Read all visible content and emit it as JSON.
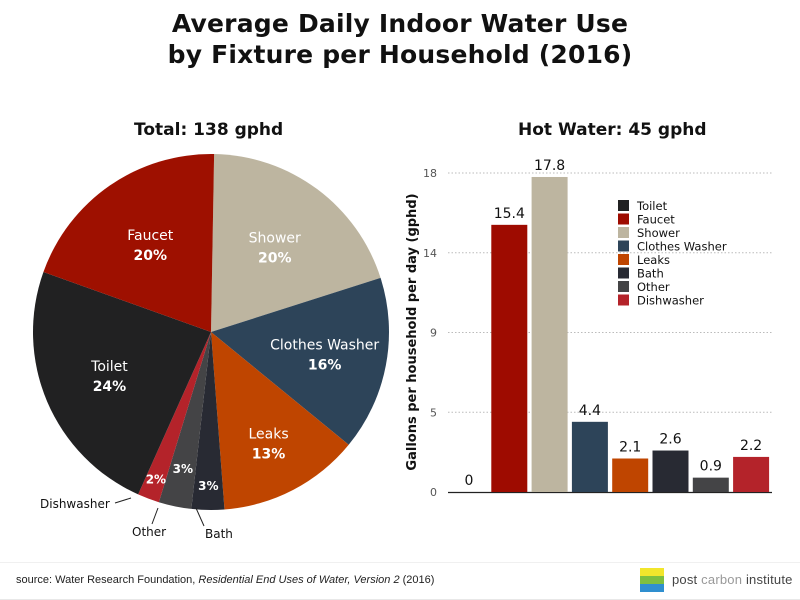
{
  "title_line1": "Average Daily Indoor Water Use",
  "title_line2": "by Fixture per Household (2016)",
  "chart_data": [
    {
      "type": "pie",
      "title": "Total: 138 gphd",
      "unit": "percent",
      "slices": [
        {
          "label": "Shower",
          "value": 20,
          "display": "20%",
          "color": "#bdb5a0",
          "label_color": "#ffffff",
          "label_position": "inside"
        },
        {
          "label": "Clothes Washer",
          "value": 16,
          "display": "16%",
          "color": "#2d4459",
          "label_color": "#ffffff",
          "label_position": "inside"
        },
        {
          "label": "Leaks",
          "value": 13,
          "display": "13%",
          "color": "#bf4500",
          "label_color": "#ffffff",
          "label_position": "inside"
        },
        {
          "label": "Bath",
          "value": 3,
          "display": "3%",
          "color": "#282a33",
          "label_color": "#ffffff",
          "label_position": "outside"
        },
        {
          "label": "Other",
          "value": 3,
          "display": "3%",
          "color": "#444446",
          "label_color": "#ffffff",
          "label_position": "outside"
        },
        {
          "label": "Dishwasher",
          "value": 2,
          "display": "2%",
          "color": "#b4232a",
          "label_color": "#ffffff",
          "label_position": "outside"
        },
        {
          "label": "Toilet",
          "value": 24,
          "display": "24%",
          "color": "#212122",
          "label_color": "#ffffff",
          "label_position": "inside"
        },
        {
          "label": "Faucet",
          "value": 20,
          "display": "20%",
          "color": "#9e1000",
          "label_color": "#ffffff",
          "label_position": "inside"
        }
      ],
      "start_angle": "top, clockwise from Shower"
    },
    {
      "type": "bar",
      "title": "Hot Water: 45 gphd",
      "xlabel": "",
      "ylabel": "Gallons per household per day (gphd)",
      "yticks": [
        0,
        5,
        9,
        14,
        18
      ],
      "ylim": [
        0,
        18
      ],
      "grid": "dotted horizontal",
      "legend_position": "top-right",
      "categories": [
        "Toilet",
        "Faucet",
        "Shower",
        "Clothes Washer",
        "Leaks",
        "Bath",
        "Other",
        "Dishwasher"
      ],
      "values": [
        0,
        15.4,
        17.8,
        4.4,
        2.1,
        2.6,
        0.9,
        2.2
      ],
      "value_labels": [
        "0",
        "15.4",
        "17.8",
        "4.4",
        "2.1",
        "2.6",
        "0.9",
        "2.2"
      ],
      "colors": [
        "#212122",
        "#9e0b00",
        "#bdb5a0",
        "#2d4459",
        "#bf4500",
        "#282a33",
        "#444446",
        "#b4232a"
      ]
    }
  ],
  "footer": {
    "source_prefix": "source: Water Research Foundation, ",
    "source_title": "Residential End Uses of Water, Version 2",
    "source_suffix": " (2016)",
    "logo_word1": "post",
    "logo_word2": " carbon ",
    "logo_word3": "institute",
    "logo_colors": [
      "#f2e62c",
      "#7fbf3f",
      "#2f8fcf"
    ]
  }
}
